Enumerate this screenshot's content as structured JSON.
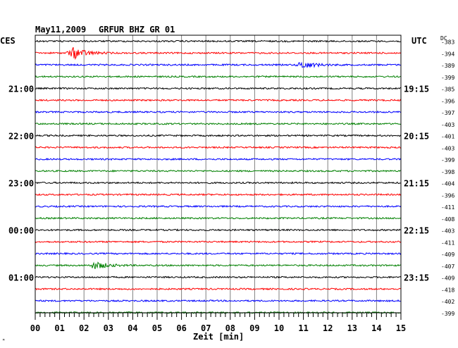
{
  "header": {
    "date": "May11,2009",
    "station": "GRFUR BHZ GR 01"
  },
  "left_zone_label": "CES",
  "right_zone_label": "UTC",
  "dc_label": "DC",
  "colors": {
    "trace_cycle": [
      "#000000",
      "#ff0000",
      "#0000ff",
      "#008000"
    ],
    "grid": "#808080",
    "frame": "#000000"
  },
  "chart_data": {
    "type": "line",
    "title": "May11,2009   GRFUR BHZ GR 01",
    "xlabel": "Zeit [min]",
    "x_ticks": [
      "00",
      "01",
      "02",
      "03",
      "04",
      "05",
      "06",
      "07",
      "08",
      "09",
      "10",
      "11",
      "12",
      "13",
      "14",
      "15"
    ],
    "xlim": [
      0,
      15
    ],
    "trace_count": 24,
    "trace_minutes": 15,
    "left_time_labels": [
      {
        "trace": 4,
        "label": "21:00"
      },
      {
        "trace": 8,
        "label": "22:00"
      },
      {
        "trace": 12,
        "label": "23:00"
      },
      {
        "trace": 16,
        "label": "00:00"
      },
      {
        "trace": 20,
        "label": "01:00"
      }
    ],
    "right_time_labels": [
      {
        "trace": 4,
        "label": "19:15"
      },
      {
        "trace": 8,
        "label": "20:15"
      },
      {
        "trace": 12,
        "label": "21:15"
      },
      {
        "trace": 16,
        "label": "22:15"
      },
      {
        "trace": 20,
        "label": "23:15"
      }
    ],
    "dc_offsets": [
      -383,
      -394,
      -389,
      -399,
      -385,
      -396,
      -397,
      -403,
      -401,
      -403,
      -399,
      -398,
      -404,
      -396,
      -411,
      -408,
      -403,
      -411,
      -409,
      -407,
      -409,
      -418,
      -402,
      -399
    ],
    "events": [
      {
        "trace": 1,
        "minute": 1.6,
        "color": "red"
      },
      {
        "trace": 2,
        "minute": 11.0,
        "color": "blue"
      },
      {
        "trace": 19,
        "minute": 2.5,
        "color": "green"
      }
    ]
  }
}
